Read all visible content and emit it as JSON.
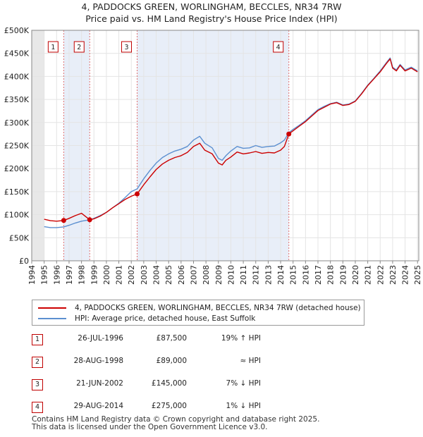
{
  "title_line1": "4, PADDOCKS GREEN, WORLINGHAM, BECCLES, NR34 7RW",
  "title_line2": "Price paid vs. HM Land Registry's House Price Index (HPI)",
  "colors": {
    "price_line": "#cc0000",
    "hpi_line": "#5b8fd0",
    "marker_line": "#e07070",
    "shade": "#e8eef8"
  },
  "chart_data": {
    "type": "line",
    "ylim": [
      0,
      500000
    ],
    "xlim": [
      1994,
      2025.1
    ],
    "y_ticks": [
      {
        "value": 0,
        "label": "£0"
      },
      {
        "value": 50000,
        "label": "£50K"
      },
      {
        "value": 100000,
        "label": "£100K"
      },
      {
        "value": 150000,
        "label": "£150K"
      },
      {
        "value": 200000,
        "label": "£200K"
      },
      {
        "value": 250000,
        "label": "£250K"
      },
      {
        "value": 300000,
        "label": "£300K"
      },
      {
        "value": 350000,
        "label": "£350K"
      },
      {
        "value": 400000,
        "label": "£400K"
      },
      {
        "value": 450000,
        "label": "£450K"
      },
      {
        "value": 500000,
        "label": "£500K"
      }
    ],
    "x_ticks": [
      "1994",
      "1995",
      "1996",
      "1997",
      "1998",
      "1999",
      "2000",
      "2001",
      "2002",
      "2003",
      "2004",
      "2005",
      "2006",
      "2007",
      "2008",
      "2009",
      "2010",
      "2011",
      "2012",
      "2013",
      "2014",
      "2015",
      "2016",
      "2017",
      "2018",
      "2019",
      "2020",
      "2021",
      "2022",
      "2023",
      "2024",
      "2025"
    ],
    "series": [
      {
        "name": "4, PADDOCKS GREEN, WORLINGHAM, BECCLES, NR34 7RW (detached house)",
        "x": [
          1995.0,
          1995.5,
          1996.0,
          1996.57,
          1997.0,
          1997.5,
          1998.0,
          1998.66,
          1999.0,
          1999.5,
          2000.0,
          2000.5,
          2001.0,
          2001.5,
          2002.0,
          2002.47,
          2003.0,
          2003.5,
          2004.0,
          2004.5,
          2005.0,
          2005.5,
          2006.0,
          2006.5,
          2007.0,
          2007.5,
          2007.9,
          2008.5,
          2009.0,
          2009.3,
          2009.6,
          2010.0,
          2010.5,
          2011.0,
          2011.5,
          2012.0,
          2012.5,
          2013.0,
          2013.5,
          2014.0,
          2014.3,
          2014.66,
          2015.0,
          2015.5,
          2016.0,
          2016.5,
          2017.0,
          2017.5,
          2018.0,
          2018.5,
          2019.0,
          2019.5,
          2020.0,
          2020.5,
          2021.0,
          2021.5,
          2022.0,
          2022.5,
          2022.8,
          2023.0,
          2023.3,
          2023.6,
          2024.0,
          2024.5,
          2025.0
        ],
        "y": [
          90000,
          87000,
          86000,
          87500,
          92000,
          98000,
          103000,
          89000,
          91000,
          97000,
          105000,
          115000,
          124000,
          133000,
          140000,
          145000,
          165000,
          182000,
          198000,
          210000,
          218000,
          224000,
          228000,
          235000,
          248000,
          255000,
          240000,
          232000,
          212000,
          208000,
          218000,
          225000,
          236000,
          232000,
          234000,
          237000,
          233000,
          235000,
          234000,
          240000,
          248000,
          275000,
          282000,
          292000,
          302000,
          314000,
          326000,
          333000,
          340000,
          343000,
          337000,
          339000,
          346000,
          362000,
          380000,
          395000,
          410000,
          428000,
          438000,
          418000,
          412000,
          424000,
          412000,
          418000,
          410000
        ]
      },
      {
        "name": "HPI: Average price, detached house, East Suffolk",
        "x": [
          1995.0,
          1995.5,
          1996.0,
          1996.57,
          1997.0,
          1997.5,
          1998.0,
          1998.66,
          1999.0,
          1999.5,
          2000.0,
          2000.5,
          2001.0,
          2001.5,
          2002.0,
          2002.47,
          2003.0,
          2003.5,
          2004.0,
          2004.5,
          2005.0,
          2005.5,
          2006.0,
          2006.5,
          2007.0,
          2007.5,
          2007.9,
          2008.5,
          2009.0,
          2009.3,
          2009.6,
          2010.0,
          2010.5,
          2011.0,
          2011.5,
          2012.0,
          2012.5,
          2013.0,
          2013.5,
          2014.0,
          2014.3,
          2014.66,
          2015.0,
          2015.5,
          2016.0,
          2016.5,
          2017.0,
          2017.5,
          2018.0,
          2018.5,
          2019.0,
          2019.5,
          2020.0,
          2020.5,
          2021.0,
          2021.5,
          2022.0,
          2022.5,
          2022.8,
          2023.0,
          2023.3,
          2023.6,
          2024.0,
          2024.5,
          2025.0
        ],
        "y": [
          74000,
          72000,
          72000,
          73500,
          77000,
          82000,
          86000,
          89000,
          92000,
          98000,
          105000,
          115000,
          125000,
          137000,
          150000,
          156000,
          178000,
          196000,
          212000,
          224000,
          232000,
          238000,
          242000,
          248000,
          262000,
          270000,
          255000,
          245000,
          222000,
          218000,
          228000,
          238000,
          248000,
          244000,
          245000,
          250000,
          246000,
          248000,
          249000,
          256000,
          262000,
          278000,
          285000,
          294000,
          304000,
          316000,
          328000,
          335000,
          341000,
          344000,
          338000,
          340000,
          347000,
          363000,
          381000,
          396000,
          412000,
          430000,
          440000,
          420000,
          414000,
          426000,
          414000,
          420000,
          412000
        ]
      }
    ],
    "transactions": [
      {
        "num": "1",
        "x": 1996.57,
        "price": 87500,
        "date": "26-JUL-1996",
        "price_label": "£87,500",
        "hpi": "19% ↑ HPI"
      },
      {
        "num": "2",
        "x": 1998.66,
        "price": 89000,
        "date": "28-AUG-1998",
        "price_label": "£89,000",
        "hpi": "≈ HPI"
      },
      {
        "num": "3",
        "x": 2002.47,
        "price": 145000,
        "date": "21-JUN-2002",
        "price_label": "£145,000",
        "hpi": "7% ↓ HPI"
      },
      {
        "num": "4",
        "x": 2014.66,
        "price": 275000,
        "date": "29-AUG-2014",
        "price_label": "£275,000",
        "hpi": "1% ↓ HPI"
      }
    ]
  },
  "legend": {
    "price_label": "4, PADDOCKS GREEN, WORLINGHAM, BECCLES, NR34 7RW (detached house)",
    "hpi_label": "HPI: Average price, detached house, East Suffolk"
  },
  "footer": {
    "line1": "Contains HM Land Registry data © Crown copyright and database right 2025.",
    "line2": "This data is licensed under the Open Government Licence v3.0."
  }
}
